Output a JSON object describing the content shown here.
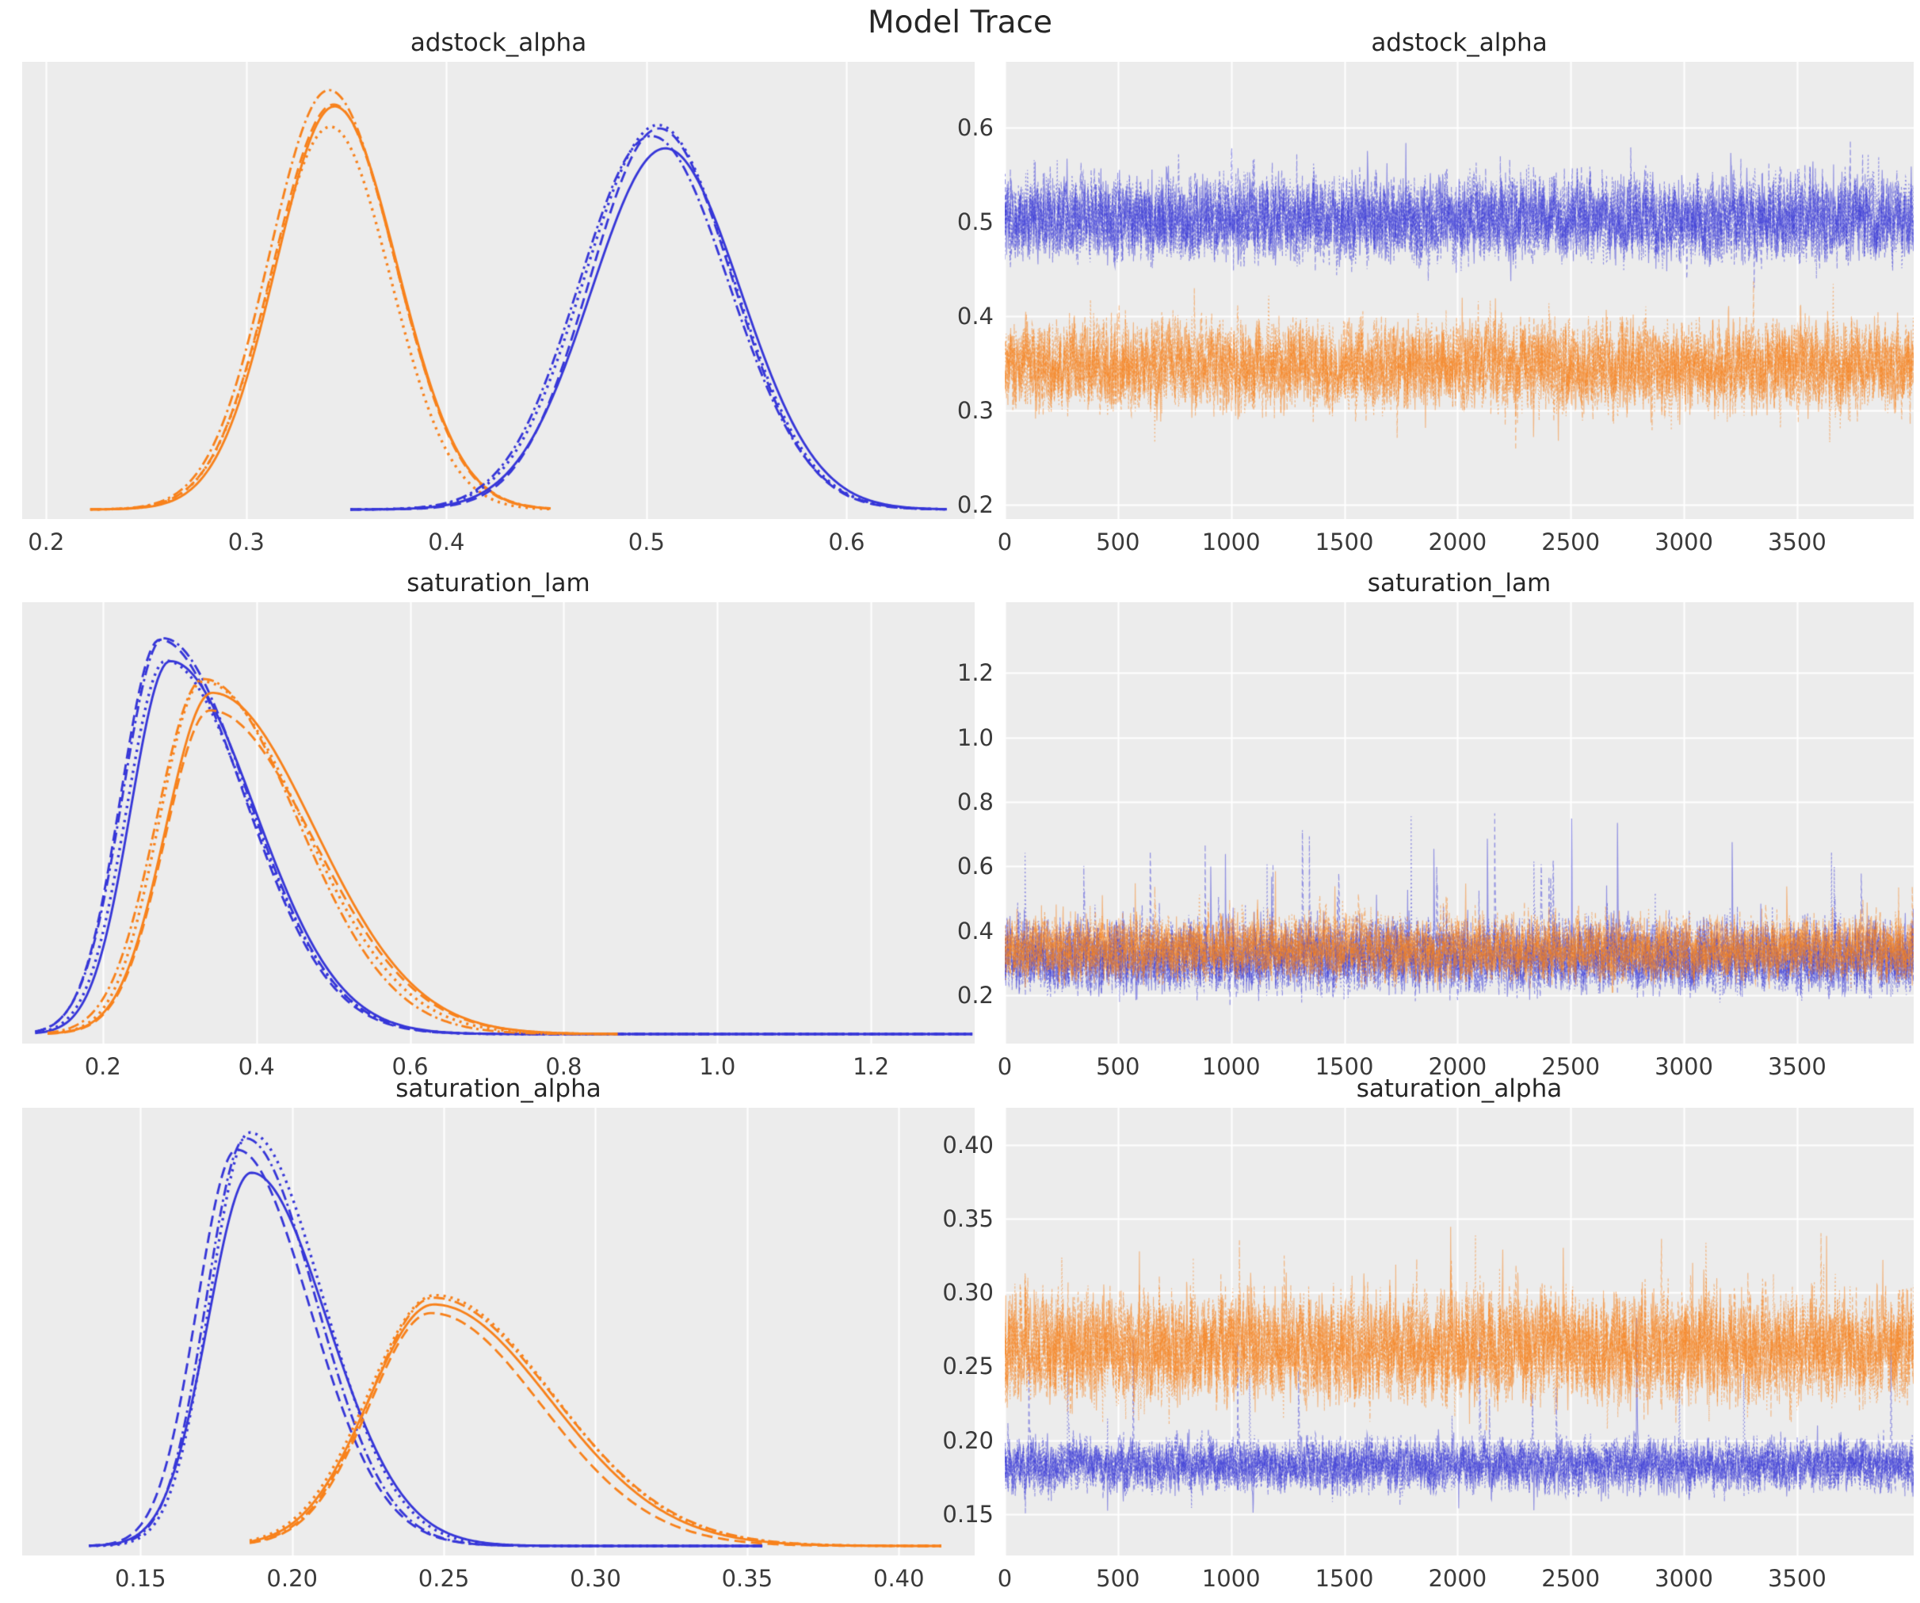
{
  "figure": {
    "title": "Model Trace"
  },
  "style": {
    "panel_bg": "#ececec",
    "grid_color": "#ffffff",
    "blue": "#3737d8",
    "orange": "#f8821c",
    "trace_alpha": 0.5,
    "tick_color": "#3a3a3a",
    "title_color": "#262626",
    "chain_linestyles": [
      "solid",
      "dashed",
      "dashdot",
      "dotted"
    ],
    "chains_per_group": 4
  },
  "chart_data": [
    {
      "type": "line",
      "role": "posterior-kde",
      "title": "adstock_alpha",
      "row": 0,
      "col": 0,
      "xlim": [
        0.188,
        0.664
      ],
      "xticks": [
        0.2,
        0.3,
        0.4,
        0.5,
        0.6
      ],
      "xtick_labels": [
        "0.2",
        "0.3",
        "0.4",
        "0.5",
        "0.6"
      ],
      "grid": "vertical-only",
      "legend": "none",
      "mode_jitter": 0.005,
      "groups": [
        {
          "name": "chain-group-orange",
          "color": "orange",
          "mode": 0.344,
          "sigma_left": 0.029,
          "sigma_right": 0.031,
          "peak_height": 1.0,
          "data_range": [
            0.222,
            0.452
          ]
        },
        {
          "name": "chain-group-blue",
          "color": "blue",
          "mode": 0.505,
          "sigma_left": 0.036,
          "sigma_right": 0.038,
          "peak_height": 0.91,
          "data_range": [
            0.352,
            0.65
          ]
        }
      ]
    },
    {
      "type": "line",
      "role": "mcmc-trace",
      "title": "adstock_alpha",
      "row": 0,
      "col": 1,
      "xlim": [
        0,
        4015
      ],
      "xticks": [
        0,
        500,
        1000,
        1500,
        2000,
        2500,
        3000,
        3500
      ],
      "xtick_labels": [
        "0",
        "500",
        "1000",
        "1500",
        "2000",
        "2500",
        "3000",
        "3500"
      ],
      "ylim": [
        0.185,
        0.67
      ],
      "yticks": [
        0.2,
        0.3,
        0.4,
        0.5,
        0.6
      ],
      "ytick_labels": [
        "0.2",
        "0.3",
        "0.4",
        "0.5",
        "0.6"
      ],
      "grid": "both",
      "legend": "none",
      "n_draws": 4000,
      "groups": [
        {
          "name": "chain-group-blue",
          "color": "blue",
          "center": 0.503,
          "sd": 0.033,
          "max_up": 0.125,
          "max_down": 0.085,
          "spike_prob": 0.0006,
          "spike_scale": 0.02,
          "observed_range": [
            0.42,
            0.635
          ]
        },
        {
          "name": "chain-group-orange",
          "color": "orange",
          "center": 0.347,
          "sd": 0.034,
          "max_up": 0.105,
          "max_down": 0.105,
          "spike_prob": 0.0006,
          "spike_scale": 0.02,
          "observed_range": [
            0.235,
            0.46
          ]
        }
      ]
    },
    {
      "type": "line",
      "role": "posterior-kde",
      "title": "saturation_lam",
      "row": 1,
      "col": 0,
      "xlim": [
        0.095,
        1.335
      ],
      "xticks": [
        0.2,
        0.4,
        0.6,
        0.8,
        1.0,
        1.2
      ],
      "xtick_labels": [
        "0.2",
        "0.4",
        "0.6",
        "0.8",
        "1.0",
        "1.2"
      ],
      "grid": "vertical-only",
      "legend": "none",
      "mode_jitter": 0.01,
      "groups": [
        {
          "name": "chain-group-blue",
          "color": "blue",
          "mode": 0.278,
          "sigma_left": 0.05,
          "sigma_right": 0.105,
          "peak_height": 1.0,
          "data_range": [
            0.112,
            1.332
          ]
        },
        {
          "name": "chain-group-orange",
          "color": "orange",
          "mode": 0.338,
          "sigma_left": 0.058,
          "sigma_right": 0.128,
          "peak_height": 0.88,
          "data_range": [
            0.128,
            0.87
          ]
        }
      ]
    },
    {
      "type": "line",
      "role": "mcmc-trace",
      "title": "saturation_lam",
      "row": 1,
      "col": 1,
      "xlim": [
        0,
        4015
      ],
      "xticks": [
        0,
        500,
        1000,
        1500,
        2000,
        2500,
        3000,
        3500
      ],
      "xtick_labels": [
        "0",
        "500",
        "1000",
        "1500",
        "2000",
        "2500",
        "3000",
        "3500"
      ],
      "ylim": [
        0.05,
        1.42
      ],
      "yticks": [
        0.2,
        0.4,
        0.6,
        0.8,
        1.0,
        1.2
      ],
      "ytick_labels": [
        "0.2",
        "0.4",
        "0.6",
        "0.8",
        "1.0",
        "1.2"
      ],
      "grid": "both",
      "legend": "none",
      "n_draws": 4000,
      "groups": [
        {
          "name": "chain-group-blue",
          "color": "blue",
          "center": 0.315,
          "sd": 0.082,
          "max_up": 0.3,
          "max_down": 0.165,
          "spike_prob": 0.004,
          "spike_scale": 0.72,
          "observed_range": [
            0.13,
            1.32
          ]
        },
        {
          "name": "chain-group-orange",
          "color": "orange",
          "center": 0.34,
          "sd": 0.072,
          "max_up": 0.26,
          "max_down": 0.15,
          "spike_prob": 0.0035,
          "spike_scale": 0.3,
          "observed_range": [
            0.15,
            0.85
          ]
        }
      ]
    },
    {
      "type": "line",
      "role": "posterior-kde",
      "title": "saturation_alpha",
      "row": 2,
      "col": 0,
      "xlim": [
        0.111,
        0.425
      ],
      "xticks": [
        0.15,
        0.2,
        0.25,
        0.3,
        0.35,
        0.4
      ],
      "xtick_labels": [
        "0.15",
        "0.20",
        "0.25",
        "0.30",
        "0.35",
        "0.40"
      ],
      "grid": "vertical-only",
      "legend": "none",
      "mode_jitter": 0.003,
      "groups": [
        {
          "name": "chain-group-blue",
          "color": "blue",
          "mode": 0.1845,
          "sigma_left": 0.0135,
          "sigma_right": 0.024,
          "peak_height": 1.0,
          "data_range": [
            0.133,
            0.355
          ]
        },
        {
          "name": "chain-group-orange",
          "color": "orange",
          "mode": 0.2485,
          "sigma_left": 0.021,
          "sigma_right": 0.038,
          "peak_height": 0.61,
          "data_range": [
            0.186,
            0.414
          ]
        }
      ]
    },
    {
      "type": "line",
      "role": "mcmc-trace",
      "title": "saturation_alpha",
      "row": 2,
      "col": 1,
      "xlim": [
        0,
        4015
      ],
      "xticks": [
        0,
        500,
        1000,
        1500,
        2000,
        2500,
        3000,
        3500
      ],
      "xtick_labels": [
        "0",
        "500",
        "1000",
        "1500",
        "2000",
        "2500",
        "3000",
        "3500"
      ],
      "ylim": [
        0.122,
        0.425
      ],
      "yticks": [
        0.15,
        0.2,
        0.25,
        0.3,
        0.35,
        0.4
      ],
      "ytick_labels": [
        "0.15",
        "0.20",
        "0.25",
        "0.30",
        "0.35",
        "0.40"
      ],
      "grid": "both",
      "legend": "none",
      "n_draws": 4000,
      "groups": [
        {
          "name": "chain-group-blue",
          "color": "blue",
          "center": 0.183,
          "sd": 0.013,
          "max_up": 0.04,
          "max_down": 0.042,
          "spike_prob": 0.001,
          "spike_scale": 0.16,
          "observed_range": [
            0.142,
            0.35
          ]
        },
        {
          "name": "chain-group-orange",
          "color": "orange",
          "center": 0.262,
          "sd": 0.027,
          "max_up": 0.098,
          "max_down": 0.066,
          "spike_prob": 0.0035,
          "spike_scale": 0.095,
          "observed_range": [
            0.195,
            0.405
          ]
        }
      ]
    }
  ]
}
